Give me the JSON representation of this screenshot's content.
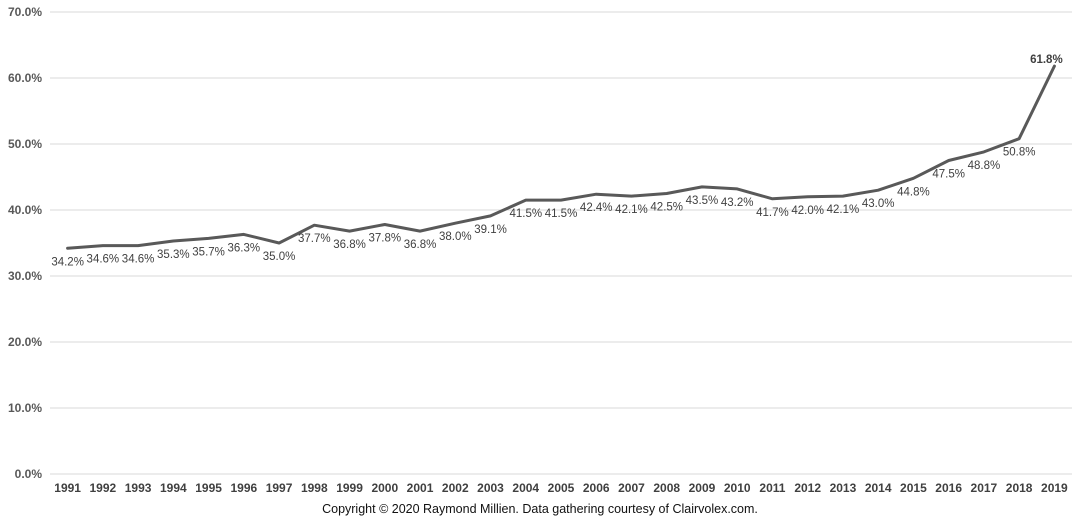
{
  "chart_data": {
    "type": "line",
    "title": "",
    "xlabel": "",
    "ylabel": "",
    "categories": [
      "1991",
      "1992",
      "1993",
      "1994",
      "1995",
      "1996",
      "1997",
      "1998",
      "1999",
      "2000",
      "2001",
      "2002",
      "2003",
      "2004",
      "2005",
      "2006",
      "2007",
      "2008",
      "2009",
      "2010",
      "2011",
      "2012",
      "2013",
      "2014",
      "2015",
      "2016",
      "2017",
      "2018",
      "2019"
    ],
    "series": [
      {
        "values": [
          34.2,
          34.6,
          34.6,
          35.3,
          35.7,
          36.3,
          35.0,
          37.7,
          36.8,
          37.8,
          36.8,
          38.0,
          39.1,
          41.5,
          41.5,
          42.4,
          42.1,
          42.5,
          43.5,
          43.2,
          41.7,
          42.0,
          42.1,
          43.0,
          44.8,
          47.5,
          48.8,
          50.8,
          61.8
        ],
        "data_labels": [
          "34.2%",
          "34.6%",
          "34.6%",
          "35.3%",
          "35.7%",
          "36.3%",
          "35.0%",
          "37.7%",
          "36.8%",
          "37.8%",
          "36.8%",
          "38.0%",
          "39.1%",
          "41.5%",
          "41.5%",
          "42.4%",
          "42.1%",
          "42.5%",
          "43.5%",
          "43.2%",
          "41.7%",
          "42.0%",
          "42.1%",
          "43.0%",
          "44.8%",
          "47.5%",
          "48.8%",
          "50.8%",
          "61.8%"
        ],
        "color": "#595959"
      }
    ],
    "ylim": [
      0,
      70
    ],
    "y_ticks": [
      0,
      10,
      20,
      30,
      40,
      50,
      60,
      70
    ],
    "y_tick_labels": [
      "0.0%",
      "10.0%",
      "20.0%",
      "30.0%",
      "40.0%",
      "50.0%",
      "60.0%",
      "70.0%"
    ],
    "grid": true,
    "legend": "none",
    "gridline_color": "#d9d9d9",
    "line_color": "#595959"
  },
  "footer": {
    "copyright": "Copyright © 2020 Raymond Millien.  Data gathering courtesy of Clairvolex.com."
  }
}
